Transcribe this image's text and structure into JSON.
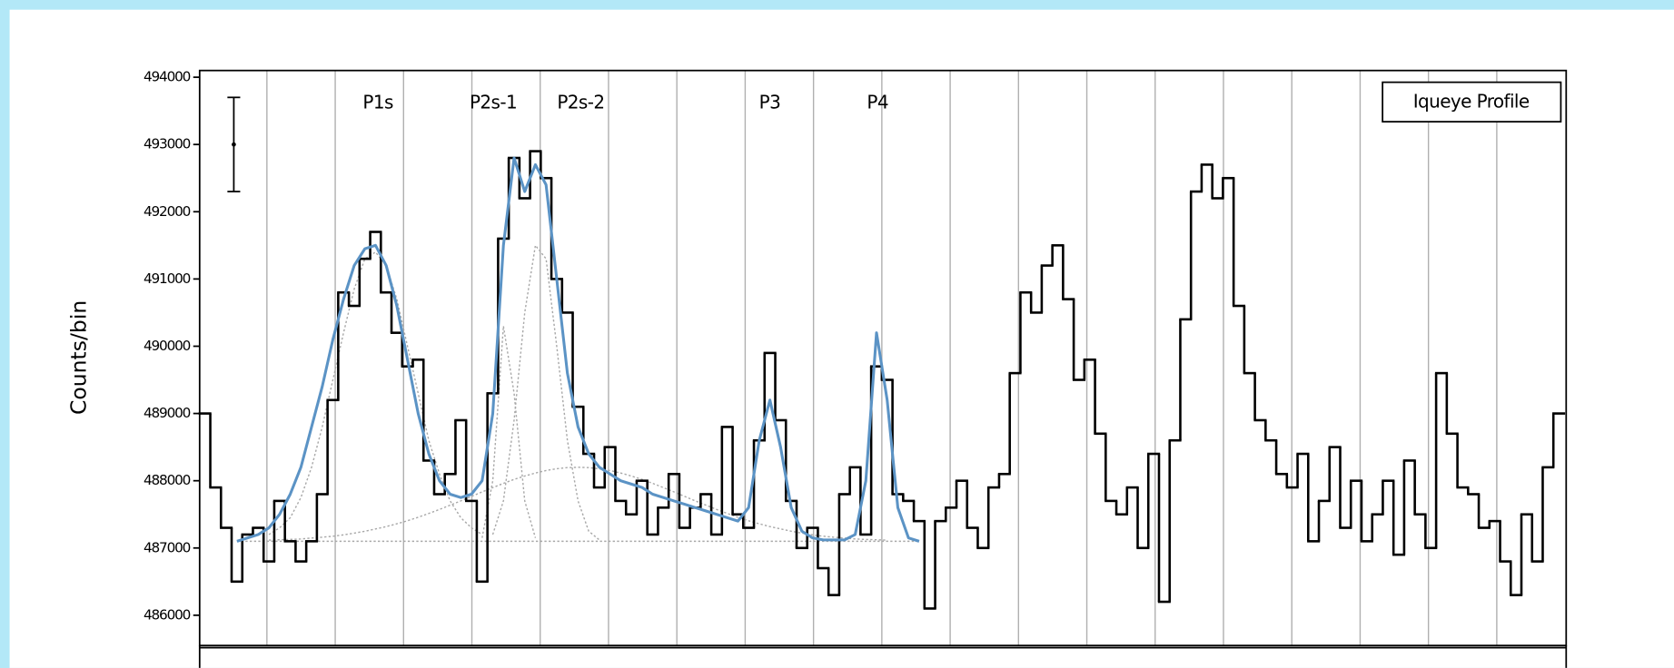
{
  "chart_data": {
    "type": "step",
    "ylabel": "Counts/bin",
    "panel_label": "Iqueye Profile",
    "peak_labels": [
      "P1s",
      "P2s-1",
      "P2s-2",
      "P3",
      "P4"
    ],
    "ylim": [
      485550,
      494100
    ],
    "yticks": [
      486000,
      487000,
      488000,
      489000,
      490000,
      491000,
      492000,
      493000,
      494000
    ],
    "error_bar": {
      "value": 493000,
      "error": 700
    },
    "baseline": 487100,
    "series": [
      {
        "kind": "step",
        "color": "#000000",
        "values": [
          489000,
          487900,
          487300,
          486500,
          487200,
          487300,
          486800,
          487700,
          487100,
          486800,
          487100,
          487800,
          489200,
          490800,
          490600,
          491300,
          491700,
          490800,
          490200,
          489700,
          489800,
          488300,
          487800,
          488100,
          488900,
          487700,
          486500,
          489300,
          491600,
          492800,
          492200,
          492900,
          492500,
          491000,
          490500,
          489100,
          488400,
          487900,
          488500,
          487700,
          487500,
          488000,
          487200,
          487600,
          488100,
          487300,
          487600,
          487800,
          487200,
          488800,
          487500,
          487300,
          488600,
          489900,
          488900,
          487700,
          487000,
          487300,
          486700,
          486300,
          487800,
          488200,
          487200,
          489700,
          489500,
          487800,
          487700,
          487400,
          486100,
          487400,
          487600,
          488000,
          487300,
          487000,
          487900,
          488100,
          489600,
          490800,
          490500,
          491200,
          491500,
          490700,
          489500,
          489800,
          488700,
          487700,
          487500,
          487900,
          487000,
          488400,
          486200,
          488600,
          490400,
          492300,
          492700,
          492200,
          492500,
          490600,
          489600,
          488900,
          488600,
          488100,
          487900,
          488400,
          487100,
          487700,
          488500,
          487300,
          488000,
          487100,
          487500,
          488000,
          486900,
          488300,
          487500,
          487000,
          489600,
          488700,
          487900,
          487800,
          487300,
          487400,
          486800,
          486300,
          487500,
          486800,
          488200,
          489000
        ]
      },
      {
        "kind": "line",
        "color": "#5b93c5",
        "values": [
          null,
          null,
          null,
          487100,
          487150,
          487200,
          487300,
          487500,
          487800,
          488200,
          488800,
          489400,
          490100,
          490700,
          491200,
          491450,
          491500,
          491200,
          490600,
          489800,
          489000,
          488400,
          488000,
          487800,
          487750,
          487800,
          488000,
          489000,
          491500,
          492800,
          492300,
          492700,
          492400,
          491000,
          489600,
          488800,
          488400,
          488200,
          488100,
          488000,
          487950,
          487900,
          487800,
          487750,
          487700,
          487650,
          487600,
          487550,
          487500,
          487450,
          487400,
          487600,
          488600,
          489200,
          488500,
          487600,
          487250,
          487150,
          487120,
          487120,
          487120,
          487200,
          488000,
          490200,
          489200,
          487600,
          487150,
          487100,
          null,
          null,
          null,
          null,
          null,
          null,
          null,
          null,
          null,
          null,
          null,
          null,
          null,
          null,
          null,
          null,
          null,
          null,
          null,
          null,
          null,
          null,
          null,
          null,
          null,
          null,
          null,
          null,
          null,
          null,
          null,
          null,
          null,
          null,
          null,
          null,
          null,
          null,
          null,
          null,
          null,
          null,
          null,
          null,
          null,
          null,
          null,
          null,
          null,
          null,
          null,
          null,
          null,
          null,
          null,
          null,
          null,
          null,
          null,
          null
        ]
      },
      {
        "kind": "dotted",
        "color": "#a8a8a8",
        "values": [
          null,
          null,
          null,
          null,
          null,
          null,
          487200,
          487300,
          487450,
          487750,
          488200,
          488800,
          489500,
          490200,
          490850,
          491300,
          491400,
          491200,
          490700,
          490000,
          489300,
          488600,
          488100,
          487700,
          487450,
          487300,
          487200,
          null,
          null,
          null,
          null,
          null,
          null,
          null,
          null,
          null,
          null,
          null,
          null,
          null,
          null,
          null,
          null,
          null,
          null,
          null,
          null,
          null,
          null,
          null,
          null,
          null,
          null,
          null,
          null,
          null,
          null,
          null,
          null,
          null,
          null,
          null,
          null,
          null,
          null,
          null,
          null,
          null,
          null,
          null,
          null,
          null,
          null,
          null,
          null,
          null,
          null,
          null,
          null,
          null,
          null,
          null,
          null,
          null,
          null,
          null,
          null,
          null,
          null,
          null,
          null,
          null,
          null,
          null,
          null,
          null,
          null,
          null,
          null,
          null,
          null,
          null,
          null,
          null,
          null,
          null,
          null,
          null,
          null,
          null,
          null,
          null,
          null,
          null,
          null,
          null,
          null,
          null,
          null,
          null,
          null,
          null,
          null,
          null,
          null,
          null,
          null,
          null
        ]
      },
      {
        "kind": "dotted",
        "color": "#a8a8a8",
        "values": [
          null,
          null,
          null,
          null,
          null,
          null,
          null,
          null,
          null,
          null,
          null,
          null,
          null,
          null,
          null,
          null,
          null,
          null,
          null,
          null,
          null,
          null,
          null,
          null,
          null,
          null,
          487150,
          488000,
          490300,
          489300,
          487700,
          487150,
          null,
          null,
          null,
          null,
          null,
          null,
          null,
          null,
          null,
          null,
          null,
          null,
          null,
          null,
          null,
          null,
          null,
          null,
          null,
          null,
          null,
          null,
          null,
          null,
          null,
          null,
          null,
          null,
          null,
          null,
          null,
          null,
          null,
          null,
          null,
          null,
          null,
          null,
          null,
          null,
          null,
          null,
          null,
          null,
          null,
          null,
          null,
          null,
          null,
          null,
          null,
          null,
          null,
          null,
          null,
          null,
          null,
          null,
          null,
          null,
          null,
          null,
          null,
          null,
          null,
          null,
          null,
          null,
          null,
          null,
          null,
          null,
          null,
          null,
          null,
          null,
          null,
          null,
          null,
          null,
          null,
          null,
          null,
          null,
          null,
          null,
          null,
          null,
          null,
          null,
          null,
          null,
          null,
          null,
          null,
          null
        ]
      },
      {
        "kind": "dotted",
        "color": "#a8a8a8",
        "values": [
          null,
          null,
          null,
          null,
          null,
          null,
          null,
          null,
          null,
          null,
          null,
          null,
          null,
          null,
          null,
          null,
          null,
          null,
          null,
          null,
          null,
          null,
          null,
          null,
          null,
          null,
          null,
          487200,
          487700,
          488900,
          490500,
          491500,
          491300,
          490000,
          488600,
          487700,
          487250,
          487120,
          null,
          null,
          null,
          null,
          null,
          null,
          null,
          null,
          null,
          null,
          null,
          null,
          null,
          null,
          null,
          null,
          null,
          null,
          null,
          null,
          null,
          null,
          null,
          null,
          null,
          null,
          null,
          null,
          null,
          null,
          null,
          null,
          null,
          null,
          null,
          null,
          null,
          null,
          null,
          null,
          null,
          null,
          null,
          null,
          null,
          null,
          null,
          null,
          null,
          null,
          null,
          null,
          null,
          null,
          null,
          null,
          null,
          null,
          null,
          null,
          null,
          null,
          null,
          null,
          null,
          null,
          null,
          null,
          null,
          null,
          null,
          null,
          null,
          null,
          null,
          null,
          null,
          null,
          null,
          null,
          null,
          null,
          null,
          null,
          null,
          null,
          null,
          null,
          null,
          null
        ]
      },
      {
        "kind": "dotted",
        "color": "#a8a8a8",
        "values": [
          null,
          null,
          null,
          null,
          null,
          null,
          487117,
          487122,
          487127,
          487134,
          487148,
          487160,
          487175,
          487195,
          487221,
          487249,
          487283,
          487318,
          487360,
          487405,
          487457,
          487514,
          487573,
          487637,
          487700,
          487767,
          487834,
          487898,
          487961,
          488020,
          488070,
          488115,
          488152,
          488178,
          488195,
          488200,
          488195,
          488178,
          488152,
          488115,
          488070,
          488020,
          487961,
          487898,
          487834,
          487767,
          487700,
          487637,
          487573,
          487514,
          487457,
          487405,
          487360,
          487318,
          487283,
          487249,
          487221,
          487195,
          487175,
          487160,
          487148,
          487134,
          487127,
          487122,
          487117,
          null,
          null,
          null,
          null,
          null,
          null,
          null,
          null,
          null,
          null,
          null,
          null,
          null,
          null,
          null,
          null,
          null,
          null,
          null,
          null,
          null,
          null,
          null,
          null,
          null,
          null,
          null,
          null,
          null,
          null,
          null,
          null,
          null,
          null,
          null,
          null,
          null,
          null,
          null,
          null,
          null,
          null,
          null,
          null,
          null,
          null,
          null,
          null,
          null,
          null,
          null,
          null,
          null,
          null,
          null,
          null,
          null,
          null,
          null,
          null,
          null,
          null,
          null
        ]
      }
    ]
  }
}
